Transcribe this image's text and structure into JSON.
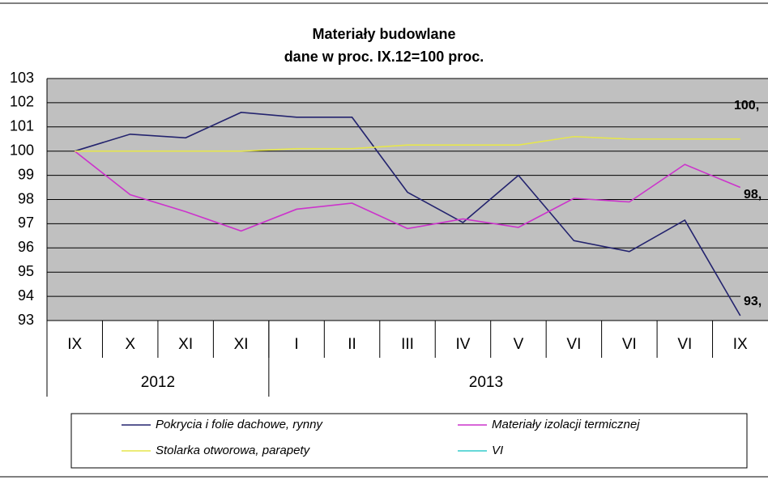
{
  "chart_data": {
    "type": "line",
    "title": "Materiały budowlane",
    "subtitle": "dane w proc. IX.12=100 proc.",
    "categories": [
      "IX",
      "X",
      "XI",
      "XI",
      "I",
      "II",
      "III",
      "IV",
      "V",
      "VI",
      "VI",
      "VI",
      "IX"
    ],
    "year_groups": [
      {
        "label": "2012",
        "count": 4
      },
      {
        "label": "2013",
        "count": 9
      }
    ],
    "ylim": [
      93,
      103
    ],
    "yticks": [
      93,
      94,
      95,
      96,
      97,
      98,
      99,
      100,
      101,
      102,
      103
    ],
    "grid": true,
    "legend": "bottom",
    "series": [
      {
        "name": "Pokrycia i folie dachowe, rynny",
        "color": "#23236e",
        "values": [
          100,
          100.7,
          100.55,
          101.6,
          101.4,
          101.4,
          98.3,
          97.05,
          99.0,
          96.3,
          95.85,
          97.15,
          93.2
        ],
        "value_labels": [
          null,
          null,
          null,
          null,
          null,
          null,
          null,
          null,
          null,
          null,
          null,
          null,
          "93,"
        ]
      },
      {
        "name": "Materiały izolacji termicznej",
        "color": "#cc33cc",
        "values": [
          100,
          98.2,
          97.5,
          96.7,
          97.6,
          97.85,
          96.8,
          97.2,
          96.85,
          98.05,
          97.9,
          99.45,
          98.5
        ],
        "value_labels": [
          null,
          null,
          null,
          null,
          null,
          null,
          null,
          null,
          null,
          null,
          null,
          null,
          "98,"
        ]
      },
      {
        "name": "Stolarka otworowa, parapety",
        "color": "#e6e64c",
        "values": [
          100,
          100,
          100,
          100,
          100.1,
          100.1,
          100.25,
          100.25,
          100.25,
          100.6,
          100.5,
          100.5,
          100.5
        ],
        "value_labels": [
          null,
          null,
          null,
          null,
          null,
          null,
          null,
          null,
          null,
          null,
          null,
          null,
          "100,"
        ]
      },
      {
        "name": "VI",
        "color": "#33cccc",
        "values": [
          null,
          null,
          null,
          null,
          null,
          null,
          null,
          null,
          null,
          null,
          null,
          null,
          null
        ]
      }
    ]
  }
}
